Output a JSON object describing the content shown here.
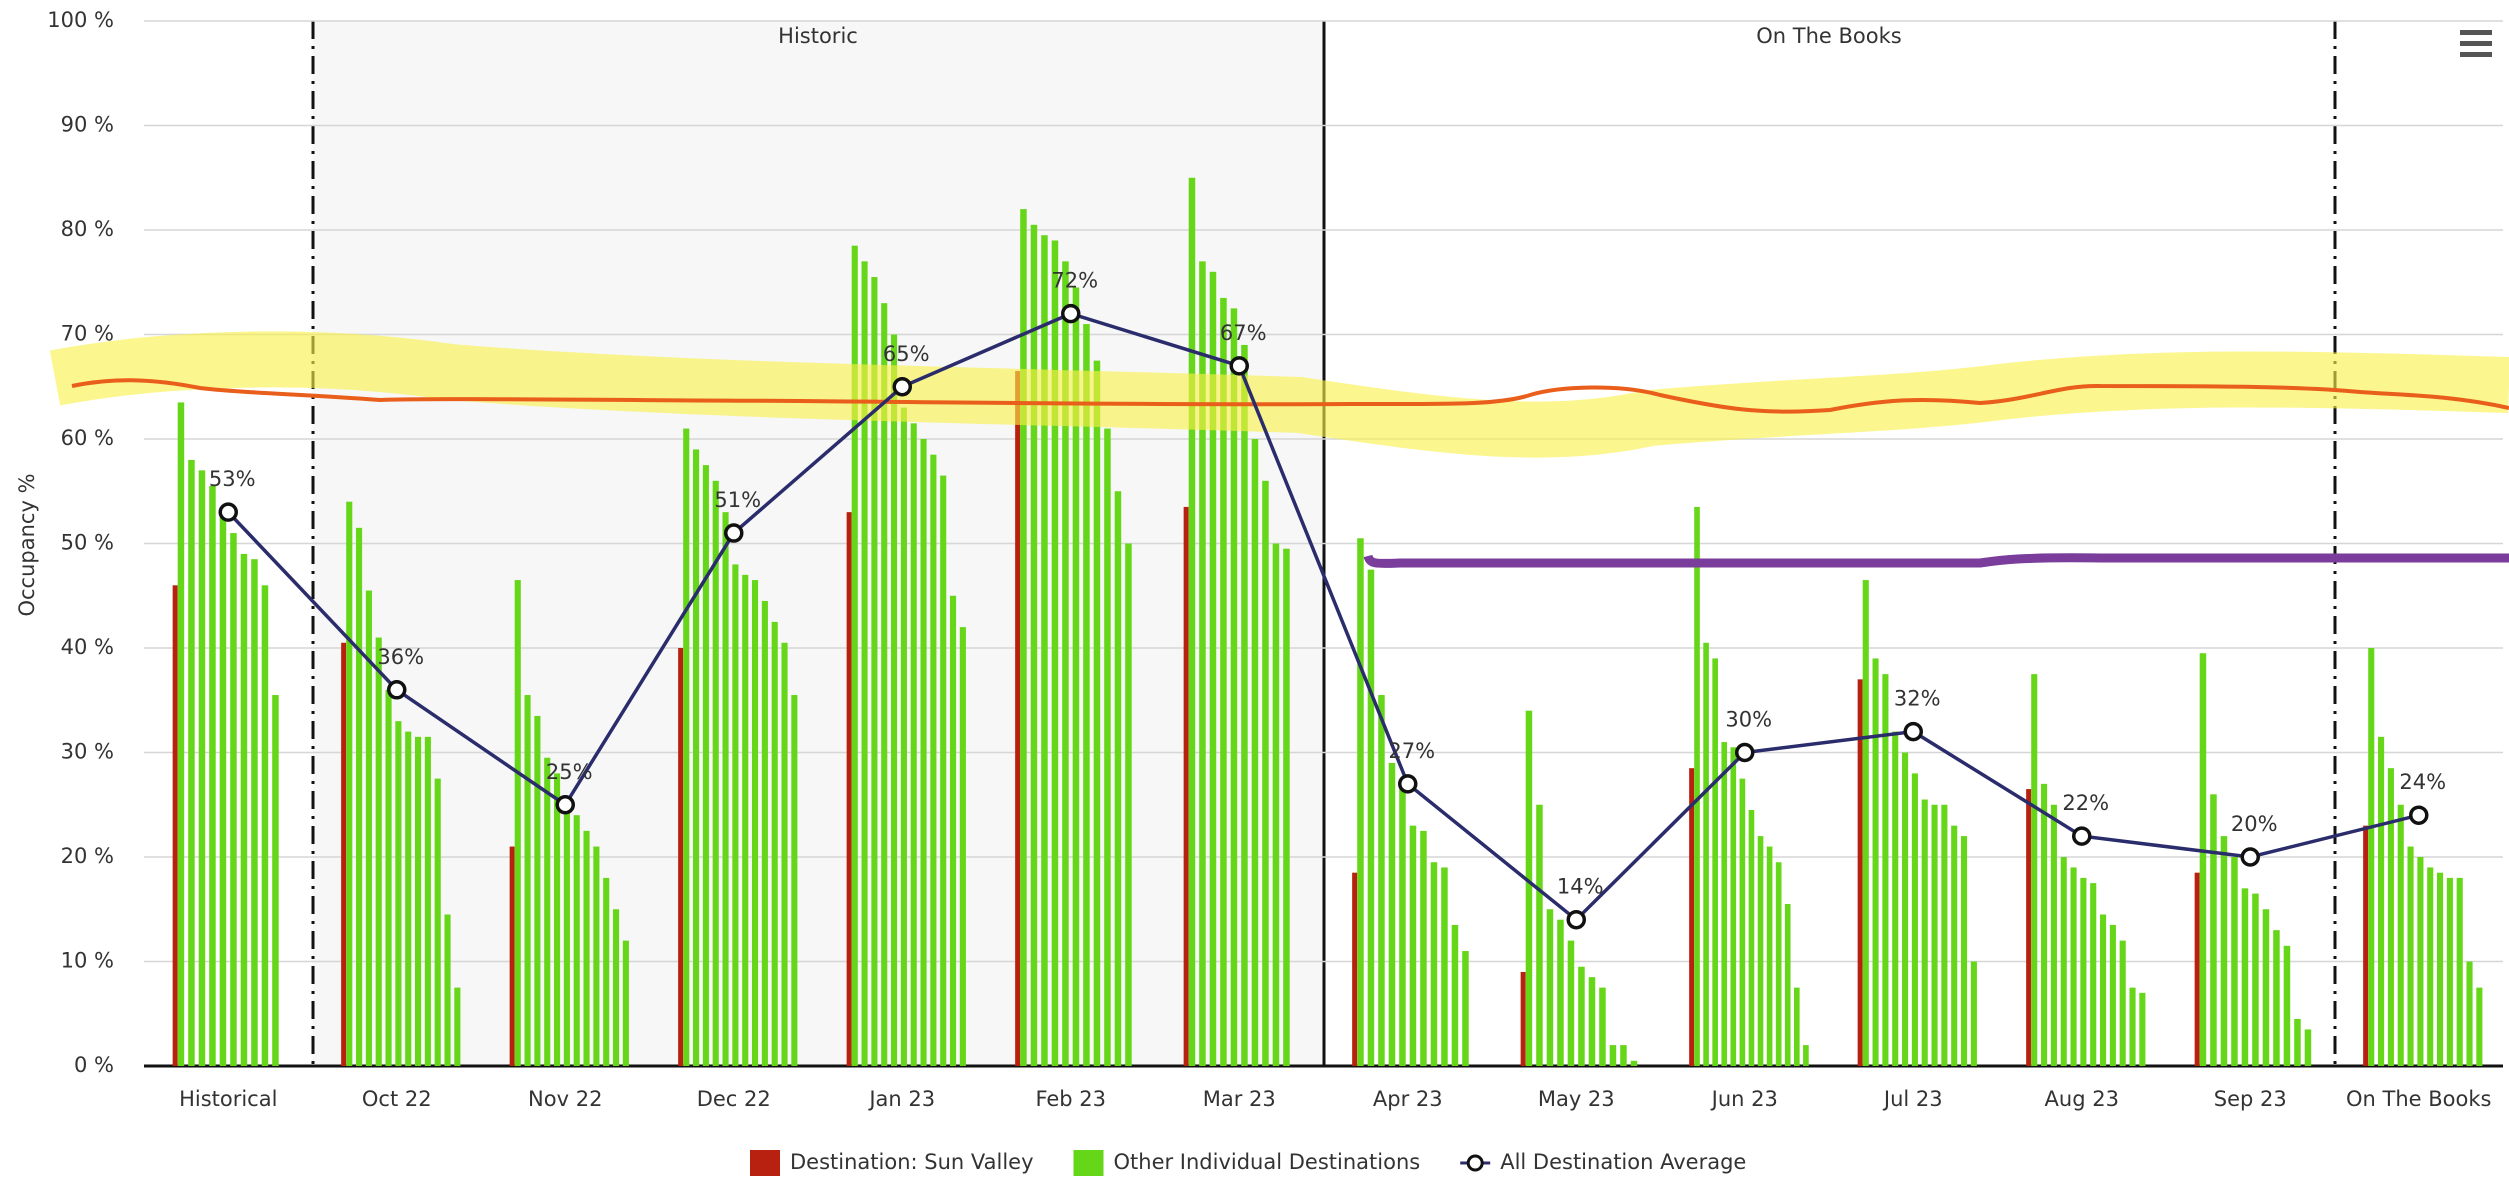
{
  "chart_data": {
    "type": "bar",
    "y_label": "Occupancy %",
    "categories": [
      "Historical",
      "Oct 22",
      "Nov 22",
      "Dec 22",
      "Jan 23",
      "Feb 23",
      "Mar 23",
      "Apr 23",
      "May 23",
      "Jun 23",
      "Jul 23",
      "Aug 23",
      "Sep 23",
      "On The Books"
    ],
    "ylim": [
      0,
      100
    ],
    "yticks": [
      {
        "value": 0,
        "label": "0 %"
      },
      {
        "value": 10,
        "label": "10 %"
      },
      {
        "value": 20,
        "label": "20 %"
      },
      {
        "value": 30,
        "label": "30 %"
      },
      {
        "value": 40,
        "label": "40 %"
      },
      {
        "value": 50,
        "label": "50 %"
      },
      {
        "value": 60,
        "label": "60 %"
      },
      {
        "value": 70,
        "label": "70 %"
      },
      {
        "value": 80,
        "label": "80 %"
      },
      {
        "value": 90,
        "label": "90 %"
      },
      {
        "value": 100,
        "label": "100 %"
      }
    ],
    "grid": true,
    "plot_bands": [
      {
        "label": "Historic",
        "from": "Oct 22",
        "to": "Mar 23",
        "color": "#f7f7f7"
      },
      {
        "label": "On The Books",
        "from": "Apr 23",
        "to": "Sep 23",
        "color": "#ffffff"
      }
    ],
    "series": [
      {
        "name": "Destination: Sun Valley",
        "color": "#b8200f",
        "type": "bar",
        "values": [
          46,
          40.5,
          21,
          40,
          53,
          66.5,
          53.5,
          18.5,
          9,
          28.5,
          37,
          26.5,
          18.5,
          23
        ]
      },
      {
        "name": "Other Individual Destinations",
        "color": "#66d619",
        "type": "bar-group",
        "values": [
          [
            63.5,
            58,
            57,
            55.5,
            53,
            51,
            49,
            48.5,
            46,
            35.5
          ],
          [
            54,
            51.5,
            45.5,
            41,
            36,
            33,
            32,
            31.5,
            31.5,
            27.5,
            14.5,
            7.5
          ],
          [
            46.5,
            35.5,
            33.5,
            29.5,
            28,
            25.5,
            24,
            22.5,
            21,
            18,
            15,
            12
          ],
          [
            61,
            59,
            57.5,
            56,
            53,
            48,
            47,
            46.5,
            44.5,
            42.5,
            40.5,
            35.5
          ],
          [
            78.5,
            77,
            75.5,
            73,
            70,
            63,
            61.5,
            60,
            58.5,
            56.5,
            45,
            42
          ],
          [
            82,
            80.5,
            79.5,
            79,
            77,
            74.5,
            71,
            67.5,
            61,
            55,
            50
          ],
          [
            85,
            77,
            76,
            73.5,
            72.5,
            69,
            60,
            56,
            50,
            49.5
          ],
          [
            50.5,
            47.5,
            35.5,
            29,
            27,
            23,
            22.5,
            19.5,
            19,
            13.5,
            11
          ],
          [
            34,
            25,
            15,
            14,
            12,
            9.5,
            8.5,
            7.5,
            2,
            2,
            0.5
          ],
          [
            53.5,
            40.5,
            39,
            31,
            30.5,
            27.5,
            24.5,
            22,
            21,
            19.5,
            15.5,
            7.5,
            2
          ],
          [
            46.5,
            39,
            37.5,
            32,
            30,
            28,
            25.5,
            25,
            25,
            23,
            22,
            10
          ],
          [
            37.5,
            27,
            25,
            20,
            19,
            18,
            17.5,
            14.5,
            13.5,
            12,
            7.5,
            7
          ],
          [
            39.5,
            26,
            22,
            20,
            17,
            16.5,
            15,
            13,
            11.5,
            4.5,
            3.5
          ],
          [
            40,
            31.5,
            28.5,
            25,
            21,
            20,
            19,
            18.5,
            18,
            18,
            10,
            7.5
          ]
        ]
      },
      {
        "name": "All Destination Average",
        "color": "#2a2c6b",
        "type": "line",
        "values": [
          53,
          36,
          25,
          51,
          65,
          72,
          67,
          27,
          14,
          30,
          32,
          22,
          20,
          24
        ],
        "value_labels": [
          "53%",
          "36%",
          "25%",
          "51%",
          "65%",
          "72%",
          "67%",
          "27%",
          "14%",
          "30%",
          "32%",
          "22%",
          "20%",
          "24%"
        ]
      }
    ]
  }
}
